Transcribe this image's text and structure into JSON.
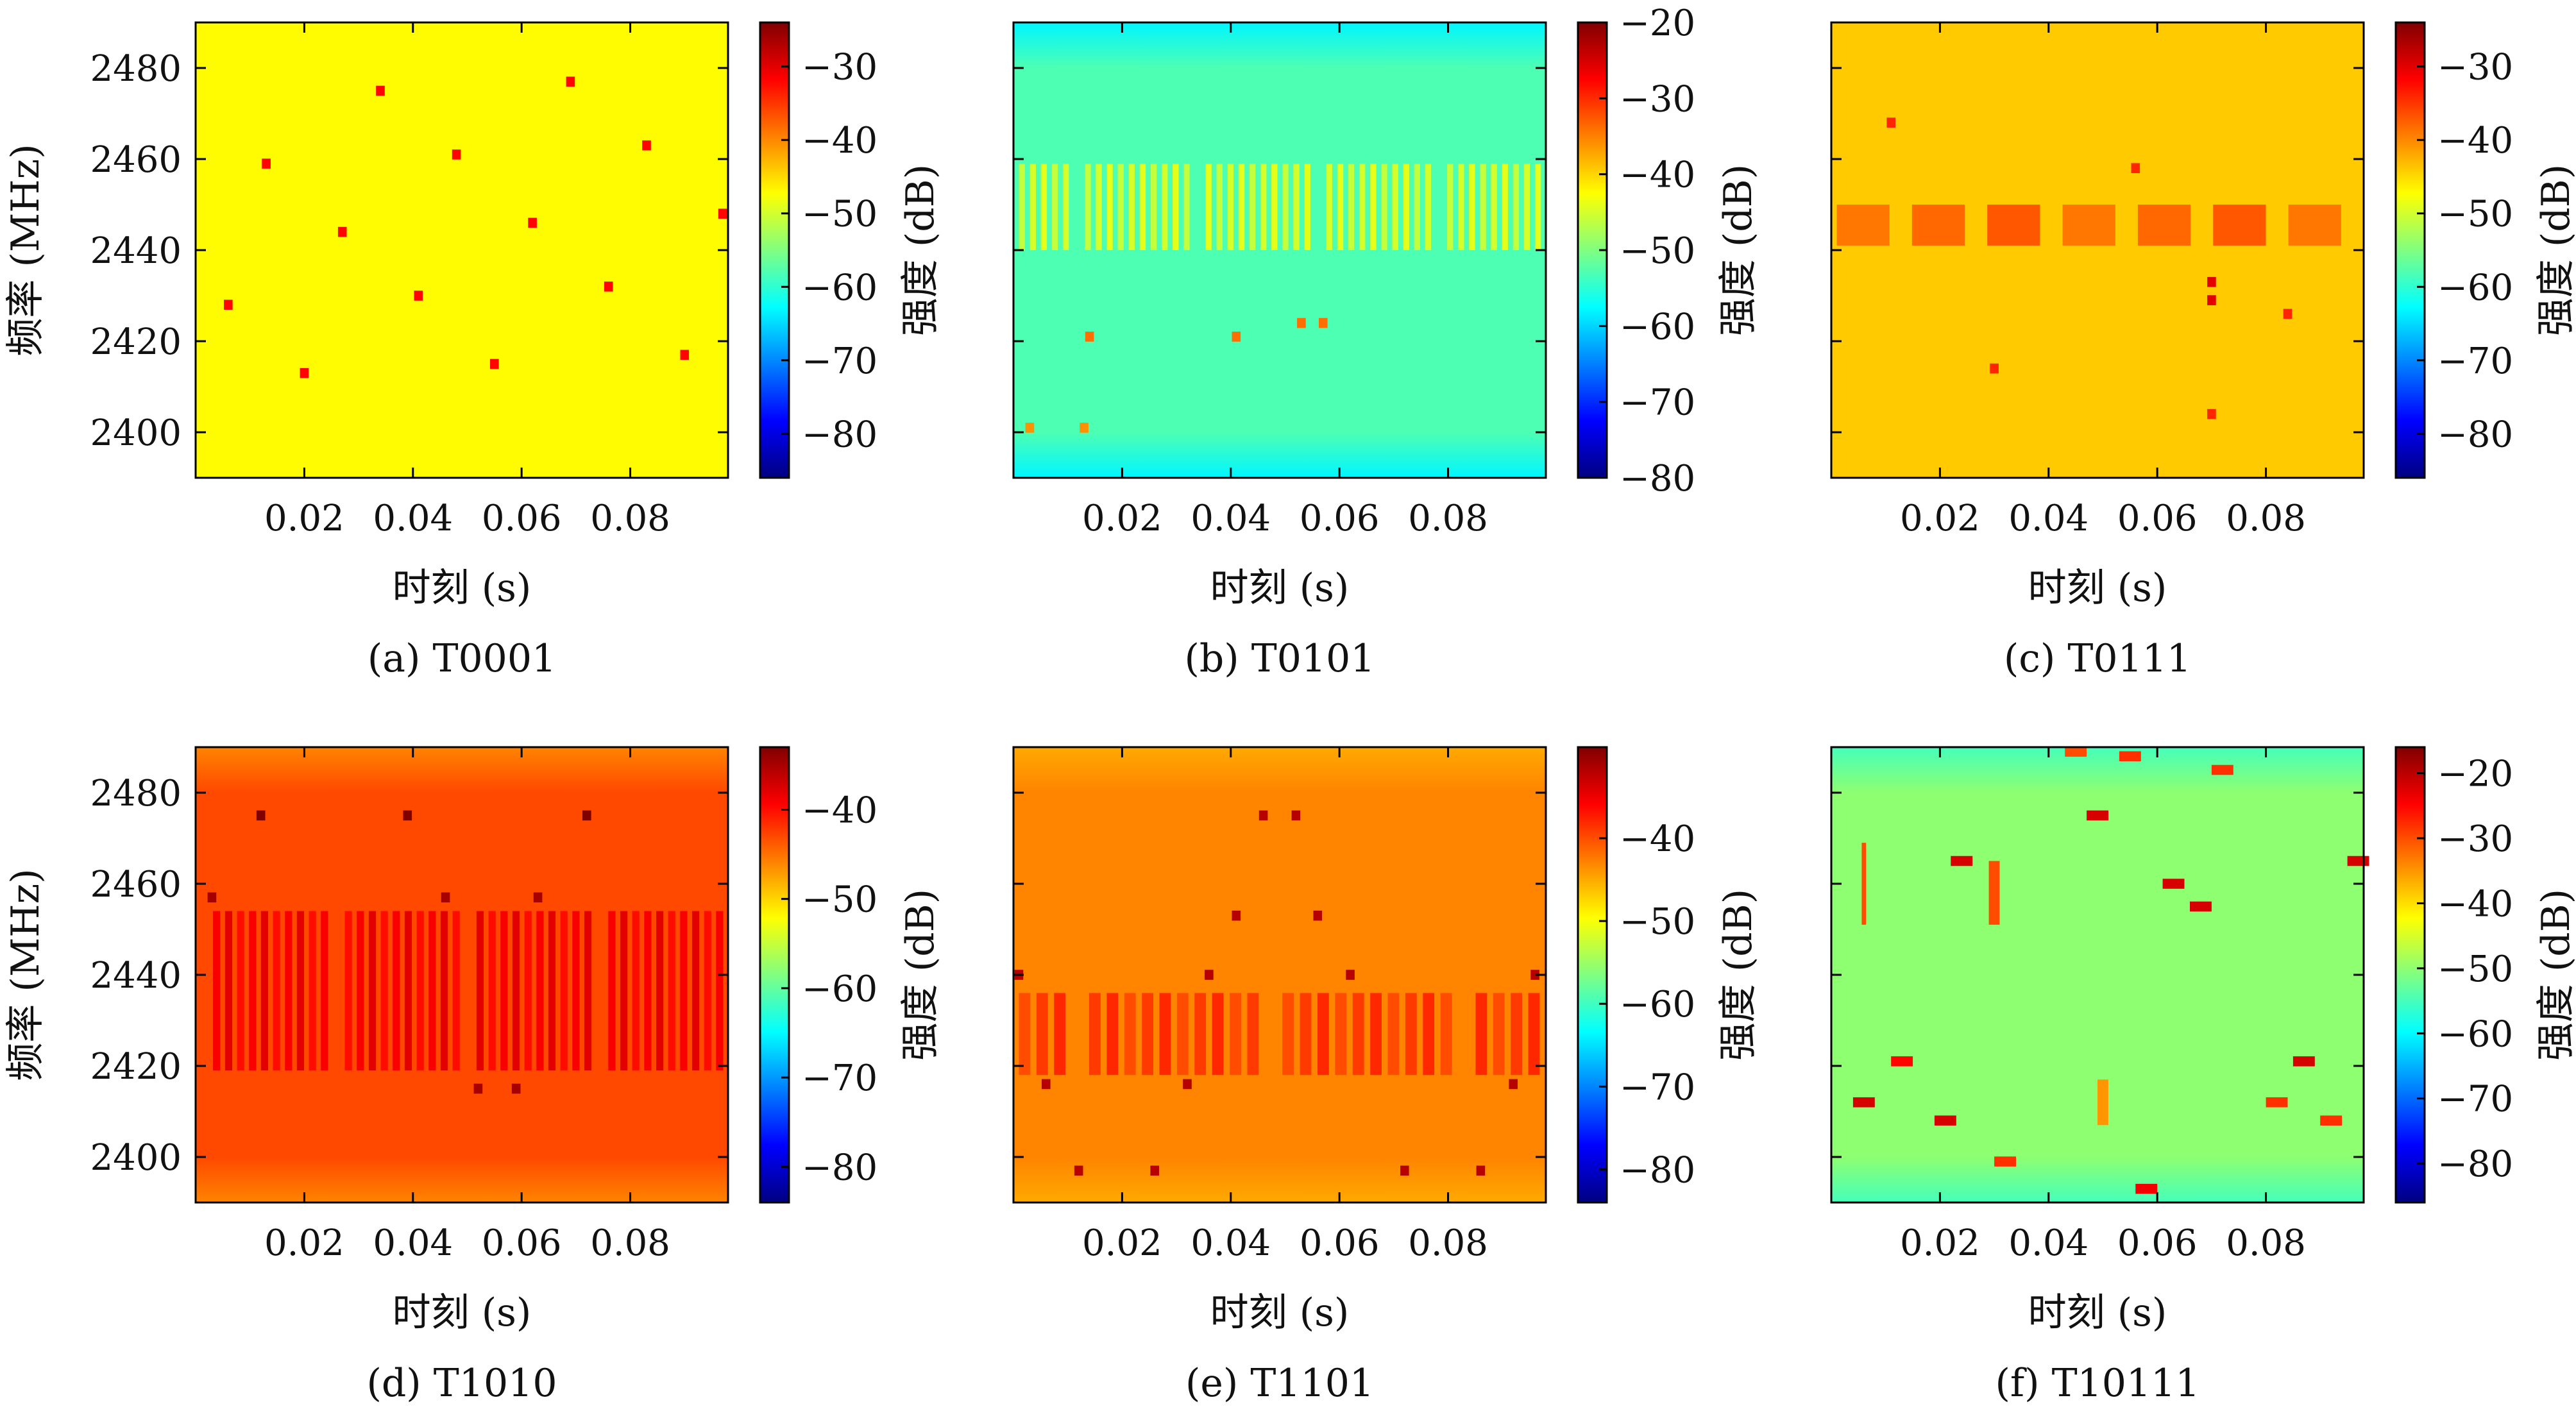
{
  "figure": {
    "shared": {
      "xlabel": "时刻 (s)",
      "ylabel": "频率 (MHz)",
      "colorbar_label": "强度 (dB)"
    }
  },
  "chart_data": [
    {
      "type": "heatmap",
      "caption": "(a) T0001",
      "xlim": [
        0.0,
        0.098
      ],
      "ylim": [
        2390,
        2490
      ],
      "xticks": [
        0.02,
        0.04,
        0.06,
        0.08
      ],
      "xticklabels": [
        "0.02",
        "0.04",
        "0.06",
        "0.08"
      ],
      "yticks": [
        2400,
        2420,
        2440,
        2460,
        2480
      ],
      "yticklabels": [
        "2400",
        "2420",
        "2440",
        "2460",
        "2480"
      ],
      "show_yticklabels": true,
      "colorbar": {
        "range": [
          -86,
          -24
        ],
        "ticks": [
          -80,
          -70,
          -60,
          -50,
          -40,
          -30
        ],
        "ticklabels": [
          "−80",
          "−70",
          "−60",
          "−50",
          "−40",
          "−30"
        ]
      },
      "background_db": -47,
      "edge_db": -47,
      "bands": [],
      "spots": [
        {
          "t": 0.006,
          "f": 2428,
          "db": -32
        },
        {
          "t": 0.013,
          "f": 2459,
          "db": -32
        },
        {
          "t": 0.02,
          "f": 2413,
          "db": -32
        },
        {
          "t": 0.027,
          "f": 2444,
          "db": -32
        },
        {
          "t": 0.034,
          "f": 2475,
          "db": -32
        },
        {
          "t": 0.041,
          "f": 2430,
          "db": -32
        },
        {
          "t": 0.048,
          "f": 2461,
          "db": -32
        },
        {
          "t": 0.055,
          "f": 2415,
          "db": -32
        },
        {
          "t": 0.062,
          "f": 2446,
          "db": -32
        },
        {
          "t": 0.069,
          "f": 2477,
          "db": -32
        },
        {
          "t": 0.076,
          "f": 2432,
          "db": -32
        },
        {
          "t": 0.083,
          "f": 2463,
          "db": -32
        },
        {
          "t": 0.09,
          "f": 2417,
          "db": -32
        },
        {
          "t": 0.097,
          "f": 2448,
          "db": -32
        }
      ]
    },
    {
      "type": "heatmap",
      "caption": "(b) T0101",
      "xlim": [
        0.0,
        0.098
      ],
      "ylim": [
        2390,
        2490
      ],
      "xticks": [
        0.02,
        0.04,
        0.06,
        0.08
      ],
      "xticklabels": [
        "0.02",
        "0.04",
        "0.06",
        "0.08"
      ],
      "yticks": [
        2400,
        2420,
        2440,
        2460,
        2480
      ],
      "yticklabels": [
        "2400",
        "2420",
        "2440",
        "2460",
        "2480"
      ],
      "show_yticklabels": false,
      "colorbar": {
        "range": [
          -80,
          -20
        ],
        "ticks": [
          -80,
          -70,
          -60,
          -50,
          -40,
          -30,
          -20
        ],
        "ticklabels": [
          "−80",
          "−70",
          "−60",
          "−50",
          "−40",
          "−30",
          "−20"
        ]
      },
      "background_db": -53,
      "edge_db": -58,
      "bands": [
        {
          "t0": 0.001,
          "t1": 0.098,
          "f0": 2440,
          "f1": 2459,
          "db": -45,
          "segments": 48,
          "duty": 0.55
        }
      ],
      "spots": [
        {
          "t": 0.014,
          "f": 2421,
          "db": -34
        },
        {
          "t": 0.053,
          "f": 2424,
          "db": -34
        },
        {
          "t": 0.057,
          "f": 2424,
          "db": -34
        },
        {
          "t": 0.041,
          "f": 2421,
          "db": -34
        },
        {
          "t": 0.003,
          "f": 2401,
          "db": -36
        },
        {
          "t": 0.013,
          "f": 2401,
          "db": -36
        }
      ]
    },
    {
      "type": "heatmap",
      "caption": "(c) T0111",
      "xlim": [
        0.0,
        0.098
      ],
      "ylim": [
        2390,
        2490
      ],
      "xticks": [
        0.02,
        0.04,
        0.06,
        0.08
      ],
      "xticklabels": [
        "0.02",
        "0.04",
        "0.06",
        "0.08"
      ],
      "yticks": [
        2400,
        2420,
        2440,
        2460,
        2480
      ],
      "yticklabels": [
        "2400",
        "2420",
        "2440",
        "2460",
        "2480"
      ],
      "show_yticklabels": false,
      "colorbar": {
        "range": [
          -86,
          -24
        ],
        "ticks": [
          -80,
          -70,
          -60,
          -50,
          -40,
          -30
        ],
        "ticklabels": [
          "−80",
          "−70",
          "−60",
          "−50",
          "−40",
          "−30"
        ]
      },
      "background_db": -44,
      "edge_db": -44,
      "bands": [
        {
          "t0": 0.001,
          "t1": 0.098,
          "f0": 2441,
          "f1": 2450,
          "db": -38,
          "segments": 7,
          "duty": 0.7
        }
      ],
      "spots": [
        {
          "t": 0.07,
          "f": 2433,
          "db": -30
        },
        {
          "t": 0.07,
          "f": 2429,
          "db": -30
        },
        {
          "t": 0.011,
          "f": 2468,
          "db": -34
        },
        {
          "t": 0.056,
          "f": 2458,
          "db": -34
        },
        {
          "t": 0.03,
          "f": 2414,
          "db": -34
        },
        {
          "t": 0.07,
          "f": 2404,
          "db": -34
        },
        {
          "t": 0.084,
          "f": 2426,
          "db": -34
        }
      ]
    },
    {
      "type": "heatmap",
      "caption": "(d) T1010",
      "xlim": [
        0.0,
        0.098
      ],
      "ylim": [
        2390,
        2490
      ],
      "xticks": [
        0.02,
        0.04,
        0.06,
        0.08
      ],
      "xticklabels": [
        "0.02",
        "0.04",
        "0.06",
        "0.08"
      ],
      "yticks": [
        2400,
        2420,
        2440,
        2460,
        2480
      ],
      "yticklabels": [
        "2400",
        "2420",
        "2440",
        "2460",
        "2480"
      ],
      "show_yticklabels": true,
      "colorbar": {
        "range": [
          -84,
          -33
        ],
        "ticks": [
          -80,
          -70,
          -60,
          -50,
          -40
        ],
        "ticklabels": [
          "−80",
          "−70",
          "−60",
          "−50",
          "−40"
        ]
      },
      "background_db": -43,
      "edge_db": -46,
      "bands": [
        {
          "t0": 0.001,
          "t1": 0.098,
          "f0": 2419,
          "f1": 2454,
          "db": -39,
          "segments": 44,
          "duty": 0.6
        }
      ],
      "spots": [
        {
          "t": 0.012,
          "f": 2475,
          "db": -33
        },
        {
          "t": 0.039,
          "f": 2475,
          "db": -33
        },
        {
          "t": 0.072,
          "f": 2475,
          "db": -33
        },
        {
          "t": 0.003,
          "f": 2457,
          "db": -35
        },
        {
          "t": 0.046,
          "f": 2457,
          "db": -35
        },
        {
          "t": 0.063,
          "f": 2457,
          "db": -35
        },
        {
          "t": 0.052,
          "f": 2415,
          "db": -35
        },
        {
          "t": 0.059,
          "f": 2415,
          "db": -35
        }
      ]
    },
    {
      "type": "heatmap",
      "caption": "(e) T1101",
      "xlim": [
        0.0,
        0.098
      ],
      "ylim": [
        2390,
        2490
      ],
      "xticks": [
        0.02,
        0.04,
        0.06,
        0.08
      ],
      "xticklabels": [
        "0.02",
        "0.04",
        "0.06",
        "0.08"
      ],
      "yticks": [
        2400,
        2420,
        2440,
        2460,
        2480
      ],
      "yticklabels": [
        "2400",
        "2420",
        "2440",
        "2460",
        "2480"
      ],
      "show_yticklabels": false,
      "colorbar": {
        "range": [
          -84,
          -29
        ],
        "ticks": [
          -80,
          -70,
          -60,
          -50,
          -40
        ],
        "ticklabels": [
          "−80",
          "−70",
          "−60",
          "−50",
          "−40"
        ]
      },
      "background_db": -43,
      "edge_db": -45,
      "bands": [
        {
          "t0": 0.001,
          "t1": 0.098,
          "f0": 2418,
          "f1": 2436,
          "db": -39,
          "segments": 30,
          "duty": 0.65
        }
      ],
      "spots": [
        {
          "t": 0.046,
          "f": 2475,
          "db": -32
        },
        {
          "t": 0.052,
          "f": 2475,
          "db": -32
        },
        {
          "t": 0.041,
          "f": 2453,
          "db": -32
        },
        {
          "t": 0.056,
          "f": 2453,
          "db": -32
        },
        {
          "t": 0.001,
          "f": 2440,
          "db": -32
        },
        {
          "t": 0.036,
          "f": 2440,
          "db": -32
        },
        {
          "t": 0.062,
          "f": 2440,
          "db": -32
        },
        {
          "t": 0.096,
          "f": 2440,
          "db": -32
        },
        {
          "t": 0.006,
          "f": 2416,
          "db": -32
        },
        {
          "t": 0.032,
          "f": 2416,
          "db": -32
        },
        {
          "t": 0.092,
          "f": 2416,
          "db": -32
        },
        {
          "t": 0.012,
          "f": 2397,
          "db": -32
        },
        {
          "t": 0.026,
          "f": 2397,
          "db": -32
        },
        {
          "t": 0.072,
          "f": 2397,
          "db": -32
        },
        {
          "t": 0.086,
          "f": 2397,
          "db": -32
        }
      ]
    },
    {
      "type": "heatmap",
      "caption": "(f) T10111",
      "xlim": [
        0.0,
        0.098
      ],
      "ylim": [
        2390,
        2490
      ],
      "xticks": [
        0.02,
        0.04,
        0.06,
        0.08
      ],
      "xticklabels": [
        "0.02",
        "0.04",
        "0.06",
        "0.08"
      ],
      "yticks": [
        2400,
        2420,
        2440,
        2460,
        2480
      ],
      "yticklabels": [
        "2400",
        "2420",
        "2440",
        "2460",
        "2480"
      ],
      "show_yticklabels": false,
      "colorbar": {
        "range": [
          -86,
          -16
        ],
        "ticks": [
          -80,
          -70,
          -60,
          -50,
          -40,
          -30,
          -20
        ],
        "ticklabels": [
          "−80",
          "−70",
          "−60",
          "−50",
          "−40",
          "−30",
          "−20"
        ]
      },
      "background_db": -50,
      "edge_db": -55,
      "bands": [],
      "spots": [
        {
          "t": 0.006,
          "f": 2412,
          "db": -22,
          "w": 0.004
        },
        {
          "t": 0.013,
          "f": 2421,
          "db": -25,
          "w": 0.004
        },
        {
          "t": 0.021,
          "f": 2408,
          "db": -22,
          "w": 0.004
        },
        {
          "t": 0.024,
          "f": 2465,
          "db": -22,
          "w": 0.004
        },
        {
          "t": 0.03,
          "f": 2458,
          "db": -30,
          "w": 0.002,
          "h": 14
        },
        {
          "t": 0.032,
          "f": 2399,
          "db": -28,
          "w": 0.004
        },
        {
          "t": 0.045,
          "f": 2489,
          "db": -30,
          "w": 0.004
        },
        {
          "t": 0.049,
          "f": 2475,
          "db": -22,
          "w": 0.004
        },
        {
          "t": 0.05,
          "f": 2412,
          "db": -35,
          "w": 0.002,
          "h": 10
        },
        {
          "t": 0.055,
          "f": 2488,
          "db": -28,
          "w": 0.004
        },
        {
          "t": 0.058,
          "f": 2393,
          "db": -24,
          "w": 0.004
        },
        {
          "t": 0.063,
          "f": 2460,
          "db": -22,
          "w": 0.004
        },
        {
          "t": 0.068,
          "f": 2455,
          "db": -22,
          "w": 0.004
        },
        {
          "t": 0.072,
          "f": 2485,
          "db": -28,
          "w": 0.004
        },
        {
          "t": 0.082,
          "f": 2412,
          "db": -28,
          "w": 0.004
        },
        {
          "t": 0.087,
          "f": 2421,
          "db": -22,
          "w": 0.004
        },
        {
          "t": 0.092,
          "f": 2408,
          "db": -28,
          "w": 0.004
        },
        {
          "t": 0.097,
          "f": 2465,
          "db": -22,
          "w": 0.004
        },
        {
          "t": 0.006,
          "f": 2460,
          "db": -30,
          "w": 0.0008,
          "h": 18
        }
      ]
    }
  ]
}
